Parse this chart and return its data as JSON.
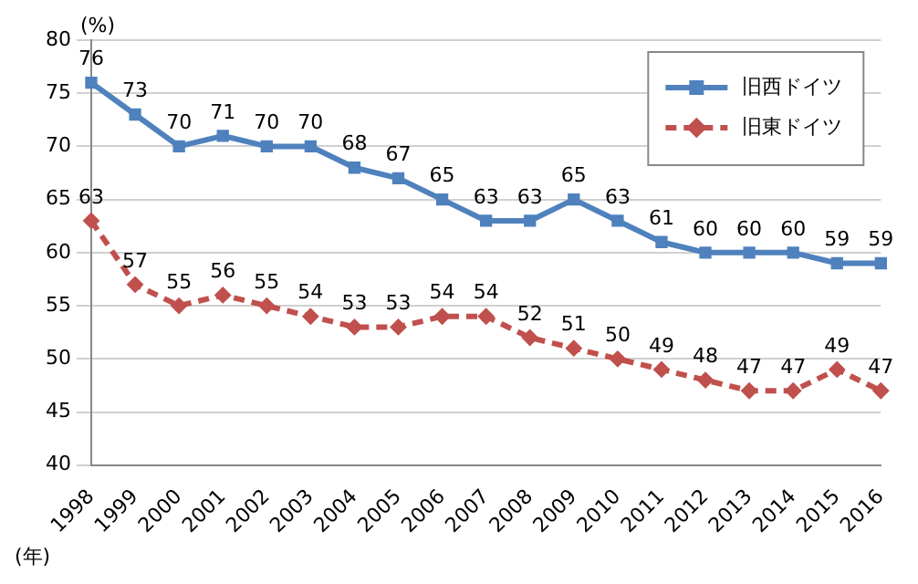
{
  "chart_data": {
    "type": "line",
    "xlabel": "(年)",
    "ylabel": "(%)",
    "categories": [
      "1998",
      "1999",
      "2000",
      "2001",
      "2002",
      "2003",
      "2004",
      "2005",
      "2006",
      "2007",
      "2008",
      "2009",
      "2010",
      "2011",
      "2012",
      "2013",
      "2014",
      "2015",
      "2016"
    ],
    "series": [
      {
        "name": "旧西ドイツ",
        "color": "#4f81bd",
        "marker": "square",
        "line_style": "solid",
        "values": [
          76,
          73,
          70,
          71,
          70,
          70,
          68,
          67,
          65,
          63,
          63,
          65,
          63,
          61,
          60,
          60,
          60,
          59,
          59
        ]
      },
      {
        "name": "旧東ドイツ",
        "color": "#c0504d",
        "marker": "diamond",
        "line_style": "dashed",
        "values": [
          63,
          57,
          55,
          56,
          55,
          54,
          53,
          53,
          54,
          54,
          52,
          51,
          50,
          49,
          48,
          47,
          47,
          49,
          47
        ]
      }
    ],
    "ylim": [
      40,
      80
    ],
    "yticks": [
      40,
      45,
      50,
      55,
      60,
      65,
      70,
      75,
      80
    ],
    "grid": "y",
    "legend": "top right",
    "data_labels": true
  }
}
